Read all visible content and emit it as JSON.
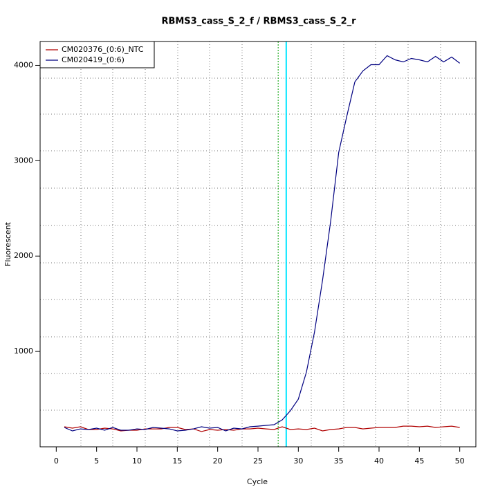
{
  "chart_data": {
    "type": "line",
    "title": "RBMS3_cass_S_2_f / RBMS3_cass_S_2_r",
    "x_label": "Cycle",
    "y_label": "Fluorescent",
    "x": [
      1,
      2,
      3,
      4,
      5,
      6,
      7,
      8,
      9,
      10,
      11,
      12,
      13,
      14,
      15,
      16,
      17,
      18,
      19,
      20,
      21,
      22,
      23,
      24,
      25,
      26,
      27,
      28,
      29,
      30,
      31,
      32,
      33,
      34,
      35,
      36,
      37,
      38,
      39,
      40,
      41,
      42,
      43,
      44,
      45,
      46,
      47,
      48,
      49,
      50
    ],
    "series": [
      {
        "name": "CM020376_(0:6)_NTC",
        "color": "#b00000",
        "values": [
          210,
          196,
          210,
          181,
          181,
          196,
          188,
          167,
          174,
          174,
          188,
          188,
          188,
          203,
          203,
          181,
          188,
          160,
          181,
          174,
          181,
          174,
          188,
          188,
          196,
          188,
          181,
          210,
          181,
          188,
          181,
          196,
          167,
          181,
          188,
          203,
          203,
          188,
          196,
          203,
          203,
          203,
          217,
          217,
          210,
          217,
          203,
          210,
          217,
          203
        ]
      },
      {
        "name": "CM020419_(0:6)",
        "color": "#000080",
        "values": [
          203,
          167,
          188,
          181,
          196,
          174,
          203,
          174,
          174,
          188,
          181,
          203,
          196,
          188,
          167,
          174,
          188,
          210,
          196,
          203,
          167,
          196,
          188,
          210,
          217,
          225,
          232,
          283,
          377,
          500,
          783,
          1203,
          1746,
          2362,
          3087,
          3464,
          3826,
          3942,
          4007,
          4007,
          4101,
          4058,
          4036,
          4072,
          4058,
          4036,
          4094,
          4036,
          4087,
          4022
        ]
      }
    ],
    "xlim": [
      -2,
      52
    ],
    "ylim": [
      0,
      4250
    ],
    "xticks": [
      0,
      5,
      10,
      15,
      20,
      25,
      30,
      35,
      40,
      45,
      50
    ],
    "yticks": [
      1000,
      2000,
      3000,
      4000
    ],
    "vlines": [
      {
        "x": 27.5,
        "color": "#00a000"
      },
      {
        "x": 28.5,
        "color": "#00e5ff"
      }
    ],
    "legend": "top-left"
  }
}
